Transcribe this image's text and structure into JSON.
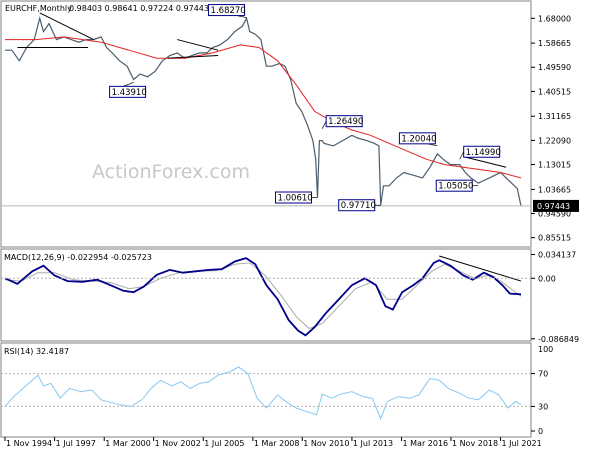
{
  "chart_data": {
    "type": "line",
    "title": "EURCHF,Monthly",
    "ohlc_text": "0.98403 0.98641 0.97224 0.97443",
    "watermark": "ActionForex.com",
    "last_price": "0.97443",
    "colors": {
      "price": "#4a5d6e",
      "moving_average": "#e52222",
      "macd": "#00008b",
      "macd_signal": "#aaaaaa",
      "rsi": "#87c8f0",
      "annotation_border": "#00008b",
      "trendline": "#000000",
      "grid": "#b4b4b4"
    },
    "x_axis": {
      "range": [
        1994.83,
        2022.6
      ],
      "ticks": [
        {
          "t": 1994.83,
          "label": "1 Nov 1994"
        },
        {
          "t": 1997.5,
          "label": "1 Jul 1997"
        },
        {
          "t": 2000.17,
          "label": "1 Mar 2000"
        },
        {
          "t": 2002.83,
          "label": "1 Nov 2002"
        },
        {
          "t": 2005.5,
          "label": "1 Jul 2005"
        },
        {
          "t": 2008.17,
          "label": "1 Mar 2008"
        },
        {
          "t": 2010.83,
          "label": "1 Nov 2010"
        },
        {
          "t": 2013.5,
          "label": "1 Jul 2013"
        },
        {
          "t": 2016.17,
          "label": "1 Mar 2016"
        },
        {
          "t": 2018.83,
          "label": "1 Nov 2018"
        },
        {
          "t": 2021.5,
          "label": "1 Jul 2021"
        }
      ]
    },
    "price_panel": {
      "ylim": [
        0.82,
        1.745
      ],
      "yticks": [
        "1.68000",
        "1.58665",
        "1.49590",
        "1.40515",
        "1.31165",
        "1.22090",
        "1.13015",
        "1.03665",
        "0.94590",
        "0.85515"
      ],
      "ytick_values": [
        1.68,
        1.58665,
        1.4959,
        1.40515,
        1.31165,
        1.2209,
        1.13015,
        1.03665,
        0.9459,
        0.85515
      ],
      "price_series": [
        [
          1994.83,
          1.56
        ],
        [
          1995.2,
          1.56
        ],
        [
          1995.6,
          1.52
        ],
        [
          1996.0,
          1.57
        ],
        [
          1996.4,
          1.6
        ],
        [
          1996.7,
          1.68
        ],
        [
          1996.9,
          1.63
        ],
        [
          1997.2,
          1.66
        ],
        [
          1997.6,
          1.6
        ],
        [
          1998.0,
          1.61
        ],
        [
          1998.4,
          1.6
        ],
        [
          1998.8,
          1.59
        ],
        [
          1999.2,
          1.6
        ],
        [
          1999.6,
          1.6
        ],
        [
          2000.0,
          1.61
        ],
        [
          2000.3,
          1.57
        ],
        [
          2000.6,
          1.55
        ],
        [
          2001.0,
          1.52
        ],
        [
          2001.4,
          1.5
        ],
        [
          2001.75,
          1.45
        ],
        [
          2002.1,
          1.47
        ],
        [
          2002.5,
          1.46
        ],
        [
          2002.9,
          1.48
        ],
        [
          2003.3,
          1.52
        ],
        [
          2003.7,
          1.54
        ],
        [
          2004.1,
          1.55
        ],
        [
          2004.5,
          1.53
        ],
        [
          2004.9,
          1.54
        ],
        [
          2005.3,
          1.55
        ],
        [
          2005.7,
          1.55
        ],
        [
          2006.0,
          1.57
        ],
        [
          2006.4,
          1.58
        ],
        [
          2006.8,
          1.6
        ],
        [
          2007.2,
          1.63
        ],
        [
          2007.6,
          1.65
        ],
        [
          2007.83,
          1.68
        ],
        [
          2008.0,
          1.63
        ],
        [
          2008.3,
          1.62
        ],
        [
          2008.6,
          1.6
        ],
        [
          2008.9,
          1.5
        ],
        [
          2009.2,
          1.5
        ],
        [
          2009.6,
          1.51
        ],
        [
          2009.9,
          1.5
        ],
        [
          2010.2,
          1.45
        ],
        [
          2010.5,
          1.36
        ],
        [
          2010.8,
          1.33
        ],
        [
          2011.1,
          1.28
        ],
        [
          2011.4,
          1.22
        ],
        [
          2011.55,
          1.15
        ],
        [
          2011.65,
          1.0061
        ],
        [
          2011.75,
          1.22
        ],
        [
          2011.9,
          1.22
        ],
        [
          2012.0,
          1.21
        ],
        [
          2012.5,
          1.2
        ],
        [
          2013.0,
          1.22
        ],
        [
          2013.5,
          1.24
        ],
        [
          2013.8,
          1.23
        ],
        [
          2014.3,
          1.22
        ],
        [
          2014.7,
          1.21
        ],
        [
          2014.95,
          1.2
        ],
        [
          2015.05,
          0.9771
        ],
        [
          2015.2,
          1.05
        ],
        [
          2015.5,
          1.05
        ],
        [
          2015.9,
          1.08
        ],
        [
          2016.3,
          1.1
        ],
        [
          2016.8,
          1.09
        ],
        [
          2017.3,
          1.08
        ],
        [
          2017.7,
          1.12
        ],
        [
          2018.1,
          1.17
        ],
        [
          2018.4,
          1.15
        ],
        [
          2018.8,
          1.13
        ],
        [
          2019.3,
          1.13
        ],
        [
          2019.6,
          1.1
        ],
        [
          2019.9,
          1.08
        ],
        [
          2020.3,
          1.06
        ],
        [
          2020.6,
          1.07
        ],
        [
          2020.9,
          1.08
        ],
        [
          2021.2,
          1.09
        ],
        [
          2021.5,
          1.1
        ],
        [
          2021.8,
          1.08
        ],
        [
          2022.1,
          1.06
        ],
        [
          2022.4,
          1.04
        ],
        [
          2022.6,
          0.97443
        ]
      ],
      "ma_series": [
        [
          1994.83,
          1.6
        ],
        [
          1996.5,
          1.6
        ],
        [
          1998.0,
          1.61
        ],
        [
          2000.0,
          1.59
        ],
        [
          2001.5,
          1.56
        ],
        [
          2003.0,
          1.53
        ],
        [
          2004.5,
          1.53
        ],
        [
          2006.0,
          1.55
        ],
        [
          2007.5,
          1.58
        ],
        [
          2008.5,
          1.57
        ],
        [
          2009.5,
          1.52
        ],
        [
          2010.5,
          1.43
        ],
        [
          2011.5,
          1.33
        ],
        [
          2012.5,
          1.29
        ],
        [
          2013.5,
          1.26
        ],
        [
          2014.5,
          1.24
        ],
        [
          2015.5,
          1.21
        ],
        [
          2016.5,
          1.18
        ],
        [
          2017.5,
          1.15
        ],
        [
          2018.5,
          1.13
        ],
        [
          2019.5,
          1.12
        ],
        [
          2020.5,
          1.11
        ],
        [
          2021.5,
          1.1
        ],
        [
          2022.6,
          1.08
        ]
      ],
      "annotations": [
        {
          "label": "1.68270",
          "t": 2007.83,
          "value": 1.6827,
          "side": "above"
        },
        {
          "label": "1.43910",
          "t": 2001.75,
          "value": 1.4391,
          "side": "below"
        },
        {
          "label": "1.26490",
          "t": 2011.9,
          "value": 1.2649,
          "side": "right"
        },
        {
          "label": "1.00610",
          "t": 2011.65,
          "value": 1.0061,
          "side": "left"
        },
        {
          "label": "0.97710",
          "t": 2015.05,
          "value": 0.9771,
          "side": "left"
        },
        {
          "label": "1.20040",
          "t": 2018.1,
          "value": 1.2004,
          "side": "above"
        },
        {
          "label": "1.14990",
          "t": 2019.3,
          "value": 1.1499,
          "side": "right"
        },
        {
          "label": "1.05050",
          "t": 2020.3,
          "value": 1.0505,
          "side": "left"
        }
      ],
      "trendlines": [
        [
          [
            1996.7,
            1.7
          ],
          [
            1999.6,
            1.6
          ]
        ],
        [
          [
            1995.5,
            1.57
          ],
          [
            1999.3,
            1.57
          ]
        ],
        [
          [
            2004.1,
            1.6
          ],
          [
            2006.3,
            1.56
          ]
        ],
        [
          [
            2003.6,
            1.53
          ],
          [
            2006.3,
            1.54
          ]
        ],
        [
          [
            2019.5,
            1.16
          ],
          [
            2021.8,
            1.12
          ]
        ]
      ]
    },
    "macd_panel": {
      "header": "MACD(12,26,9) -0.022954 -0.025723",
      "yticks": [
        "0.034137",
        "0.00",
        "-0.086849"
      ],
      "ytick_values": [
        0.034137,
        0.0,
        -0.086849
      ],
      "ylim": [
        -0.09,
        0.042
      ],
      "macd_series": [
        [
          1994.83,
          0.0
        ],
        [
          1995.5,
          -0.008
        ],
        [
          1996.3,
          0.01
        ],
        [
          1996.9,
          0.018
        ],
        [
          1997.5,
          0.004
        ],
        [
          1998.2,
          -0.004
        ],
        [
          1999.0,
          -0.005
        ],
        [
          1999.8,
          -0.002
        ],
        [
          2000.5,
          -0.01
        ],
        [
          2001.2,
          -0.018
        ],
        [
          2001.75,
          -0.02
        ],
        [
          2002.3,
          -0.012
        ],
        [
          2003.0,
          0.005
        ],
        [
          2003.7,
          0.012
        ],
        [
          2004.4,
          0.008
        ],
        [
          2005.1,
          0.01
        ],
        [
          2005.8,
          0.012
        ],
        [
          2006.5,
          0.013
        ],
        [
          2007.2,
          0.024
        ],
        [
          2007.8,
          0.029
        ],
        [
          2008.3,
          0.02
        ],
        [
          2008.9,
          -0.01
        ],
        [
          2009.5,
          -0.03
        ],
        [
          2010.1,
          -0.06
        ],
        [
          2010.6,
          -0.075
        ],
        [
          2011.0,
          -0.082
        ],
        [
          2011.5,
          -0.07
        ],
        [
          2012.1,
          -0.05
        ],
        [
          2012.8,
          -0.03
        ],
        [
          2013.5,
          -0.01
        ],
        [
          2014.2,
          0.0
        ],
        [
          2014.8,
          -0.01
        ],
        [
          2015.3,
          -0.04
        ],
        [
          2015.7,
          -0.045
        ],
        [
          2016.2,
          -0.02
        ],
        [
          2016.8,
          -0.01
        ],
        [
          2017.3,
          0.0
        ],
        [
          2017.9,
          0.022
        ],
        [
          2018.2,
          0.026
        ],
        [
          2018.8,
          0.018
        ],
        [
          2019.5,
          0.004
        ],
        [
          2020.0,
          -0.002
        ],
        [
          2020.6,
          0.008
        ],
        [
          2021.1,
          0.002
        ],
        [
          2021.6,
          -0.01
        ],
        [
          2022.0,
          -0.022
        ],
        [
          2022.6,
          -0.023
        ]
      ],
      "signal_series": [
        [
          1994.83,
          -0.002
        ],
        [
          1995.7,
          -0.004
        ],
        [
          1996.6,
          0.008
        ],
        [
          1997.5,
          0.008
        ],
        [
          1998.5,
          -0.002
        ],
        [
          1999.5,
          -0.004
        ],
        [
          2000.5,
          -0.006
        ],
        [
          2001.5,
          -0.015
        ],
        [
          2002.3,
          -0.012
        ],
        [
          2003.2,
          0.0
        ],
        [
          2004.2,
          0.008
        ],
        [
          2005.2,
          0.01
        ],
        [
          2006.2,
          0.011
        ],
        [
          2007.2,
          0.02
        ],
        [
          2008.0,
          0.022
        ],
        [
          2008.8,
          0.005
        ],
        [
          2009.7,
          -0.025
        ],
        [
          2010.5,
          -0.055
        ],
        [
          2011.2,
          -0.072
        ],
        [
          2011.9,
          -0.065
        ],
        [
          2012.8,
          -0.04
        ],
        [
          2013.7,
          -0.015
        ],
        [
          2014.6,
          -0.005
        ],
        [
          2015.4,
          -0.03
        ],
        [
          2016.2,
          -0.03
        ],
        [
          2017.0,
          -0.01
        ],
        [
          2017.8,
          0.01
        ],
        [
          2018.5,
          0.02
        ],
        [
          2019.3,
          0.01
        ],
        [
          2020.1,
          0.0
        ],
        [
          2020.8,
          0.004
        ],
        [
          2021.5,
          -0.004
        ],
        [
          2022.1,
          -0.016
        ],
        [
          2022.6,
          -0.0257
        ]
      ],
      "trendline": [
        [
          2018.2,
          0.032
        ],
        [
          2022.6,
          -0.004
        ]
      ]
    },
    "rsi_panel": {
      "header": "RSI(14) 32.4187",
      "yticks": [
        "70",
        "30",
        "0"
      ],
      "ytick_values": [
        70,
        30,
        0
      ],
      "extra_ytick_labels": [
        {
          "label": "100",
          "value": 100
        }
      ],
      "ylim": [
        0,
        100
      ],
      "rsi_series": [
        [
          1994.83,
          30
        ],
        [
          1995.3,
          42
        ],
        [
          1995.8,
          52
        ],
        [
          1996.2,
          60
        ],
        [
          1996.6,
          68
        ],
        [
          1996.9,
          55
        ],
        [
          1997.3,
          58
        ],
        [
          1997.8,
          40
        ],
        [
          1998.3,
          52
        ],
        [
          1998.9,
          48
        ],
        [
          1999.5,
          50
        ],
        [
          2000.0,
          38
        ],
        [
          2000.5,
          35
        ],
        [
          2001.0,
          32
        ],
        [
          2001.6,
          30
        ],
        [
          2002.2,
          38
        ],
        [
          2002.7,
          52
        ],
        [
          2003.2,
          62
        ],
        [
          2003.8,
          55
        ],
        [
          2004.3,
          60
        ],
        [
          2004.8,
          52
        ],
        [
          2005.3,
          58
        ],
        [
          2005.8,
          60
        ],
        [
          2006.3,
          68
        ],
        [
          2006.9,
          72
        ],
        [
          2007.4,
          78
        ],
        [
          2007.9,
          70
        ],
        [
          2008.4,
          40
        ],
        [
          2008.9,
          28
        ],
        [
          2009.5,
          44
        ],
        [
          2010.0,
          35
        ],
        [
          2010.5,
          28
        ],
        [
          2011.0,
          24
        ],
        [
          2011.6,
          20
        ],
        [
          2011.9,
          45
        ],
        [
          2012.4,
          40
        ],
        [
          2012.9,
          45
        ],
        [
          2013.5,
          48
        ],
        [
          2014.1,
          42
        ],
        [
          2014.6,
          40
        ],
        [
          2015.05,
          15
        ],
        [
          2015.4,
          36
        ],
        [
          2016.0,
          42
        ],
        [
          2016.6,
          40
        ],
        [
          2017.1,
          44
        ],
        [
          2017.7,
          64
        ],
        [
          2018.2,
          62
        ],
        [
          2018.7,
          52
        ],
        [
          2019.3,
          46
        ],
        [
          2019.8,
          40
        ],
        [
          2020.3,
          38
        ],
        [
          2020.9,
          50
        ],
        [
          2021.4,
          44
        ],
        [
          2021.9,
          28
        ],
        [
          2022.3,
          36
        ],
        [
          2022.6,
          32.4
        ]
      ]
    }
  }
}
